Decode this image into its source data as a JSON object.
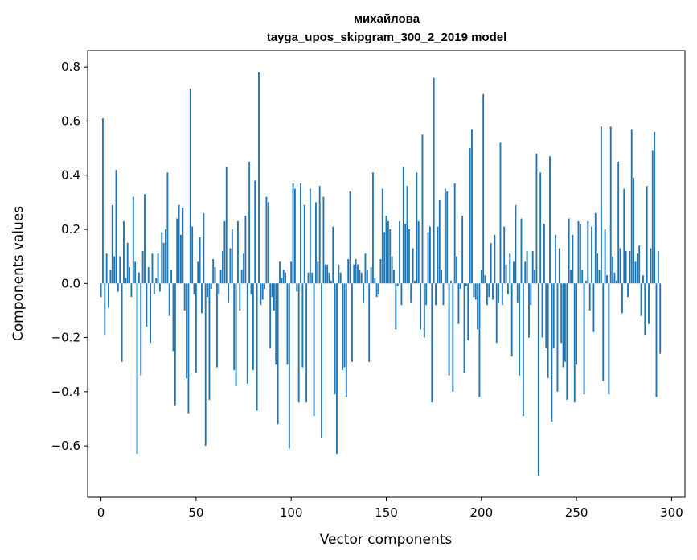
{
  "chart_data": {
    "type": "bar",
    "title_line1": "михайлова",
    "title_line2": "tayga_upos_skipgram_300_2_2019 model",
    "xlabel": "Vector components",
    "ylabel": "Components values",
    "xlim": [
      -7,
      307
    ],
    "ylim": [
      -0.79,
      0.86
    ],
    "x_ticks": [
      0,
      50,
      100,
      150,
      200,
      250,
      300
    ],
    "x_tick_labels": [
      "0",
      "50",
      "100",
      "150",
      "200",
      "250",
      "300"
    ],
    "y_ticks": [
      -0.6,
      -0.4,
      -0.2,
      0.0,
      0.2,
      0.4,
      0.6,
      0.8
    ],
    "y_tick_labels": [
      "−0.6",
      "−0.4",
      "−0.2",
      "0.0",
      "0.2",
      "0.4",
      "0.6",
      "0.8"
    ],
    "bar_color": "#1f77b4",
    "grid": false,
    "values": [
      -0.05,
      0.61,
      -0.19,
      0.11,
      -0.09,
      0.05,
      0.29,
      0.1,
      0.42,
      -0.03,
      0.1,
      -0.29,
      0.23,
      0.02,
      0.15,
      0.06,
      -0.05,
      0.32,
      0.08,
      -0.63,
      0.04,
      -0.34,
      0.12,
      0.33,
      -0.16,
      0.06,
      -0.22,
      0.11,
      -0.04,
      0.02,
      0.11,
      -0.03,
      0.19,
      0.15,
      0.2,
      0.41,
      -0.12,
      0.05,
      -0.25,
      -0.45,
      0.24,
      0.29,
      0.18,
      0.28,
      -0.1,
      -0.35,
      -0.48,
      0.72,
      0.21,
      -0.04,
      -0.33,
      0.08,
      0.17,
      -0.11,
      0.26,
      -0.6,
      -0.05,
      -0.43,
      -0.02,
      0.09,
      0.06,
      -0.31,
      -0.04,
      0.05,
      0.12,
      0.23,
      0.43,
      -0.07,
      0.13,
      0.2,
      -0.32,
      -0.38,
      0.23,
      -0.1,
      0.05,
      0.11,
      0.25,
      -0.37,
      0.45,
      -0.04,
      -0.32,
      0.38,
      -0.47,
      0.78,
      -0.08,
      -0.06,
      -0.02,
      0.32,
      0.3,
      -0.24,
      -0.05,
      -0.1,
      -0.3,
      -0.52,
      0.08,
      0.02,
      0.05,
      0.04,
      -0.3,
      -0.61,
      0.08,
      0.37,
      0.35,
      -0.03,
      -0.44,
      0.37,
      -0.31,
      0.29,
      -0.44,
      0.04,
      0.35,
      0.04,
      -0.49,
      0.3,
      0.08,
      0.36,
      -0.57,
      0.32,
      0.07,
      0.07,
      0.04,
      0.01,
      0.21,
      -0.41,
      -0.63,
      0.07,
      0.04,
      -0.32,
      -0.31,
      -0.42,
      0.09,
      0.34,
      -0.29,
      0.07,
      0.09,
      0.07,
      0.05,
      0.04,
      -0.07,
      0.11,
      0.05,
      -0.29,
      0.06,
      0.41,
      0.02,
      -0.05,
      -0.04,
      0.09,
      0.35,
      0.19,
      0.25,
      0.23,
      0.2,
      0.1,
      0.05,
      -0.17,
      -0.01,
      0.23,
      -0.08,
      0.43,
      0.22,
      0.36,
      0.2,
      -0.07,
      0.13,
      0.01,
      0.41,
      0.23,
      -0.17,
      0.55,
      -0.2,
      -0.08,
      0.19,
      0.21,
      -0.44,
      0.76,
      -0.08,
      0.21,
      0.31,
      0.05,
      -0.08,
      0.35,
      0.34,
      -0.34,
      0.01,
      -0.4,
      0.37,
      0.1,
      -0.15,
      -0.02,
      0.25,
      -0.33,
      -0.01,
      -0.21,
      0.5,
      0.57,
      -0.05,
      -0.06,
      -0.17,
      -0.42,
      0.05,
      0.7,
      0.03,
      -0.08,
      -0.05,
      0.15,
      -0.06,
      0.18,
      -0.22,
      -0.07,
      0.52,
      -0.08,
      0.21,
      0.07,
      -0.04,
      0.11,
      -0.27,
      0.08,
      0.29,
      -0.07,
      -0.34,
      0.24,
      -0.49,
      0.08,
      0.12,
      -0.2,
      -0.08,
      0.12,
      0.05,
      0.48,
      -0.71,
      0.41,
      -0.2,
      0.22,
      -0.24,
      -0.35,
      0.47,
      -0.51,
      -0.24,
      0.18,
      -0.4,
      0.13,
      -0.22,
      -0.31,
      -0.29,
      -0.43,
      0.24,
      0.05,
      0.18,
      -0.44,
      -0.3,
      0.23,
      0.22,
      0.05,
      -0.41,
      0.01,
      0.23,
      -0.1,
      0.21,
      -0.18,
      0.26,
      0.11,
      0.05,
      0.58,
      -0.36,
      0.2,
      0.03,
      -0.41,
      0.58,
      0.1,
      0.04,
      0.01,
      0.45,
      0.13,
      -0.11,
      0.35,
      0.12,
      -0.05,
      0.12,
      0.57,
      0.39,
      0.08,
      0.11,
      0.14,
      -0.12,
      0.03,
      -0.19,
      0.36,
      -0.15,
      0.13,
      0.49,
      0.56,
      -0.42,
      0.12,
      -0.26
    ]
  }
}
